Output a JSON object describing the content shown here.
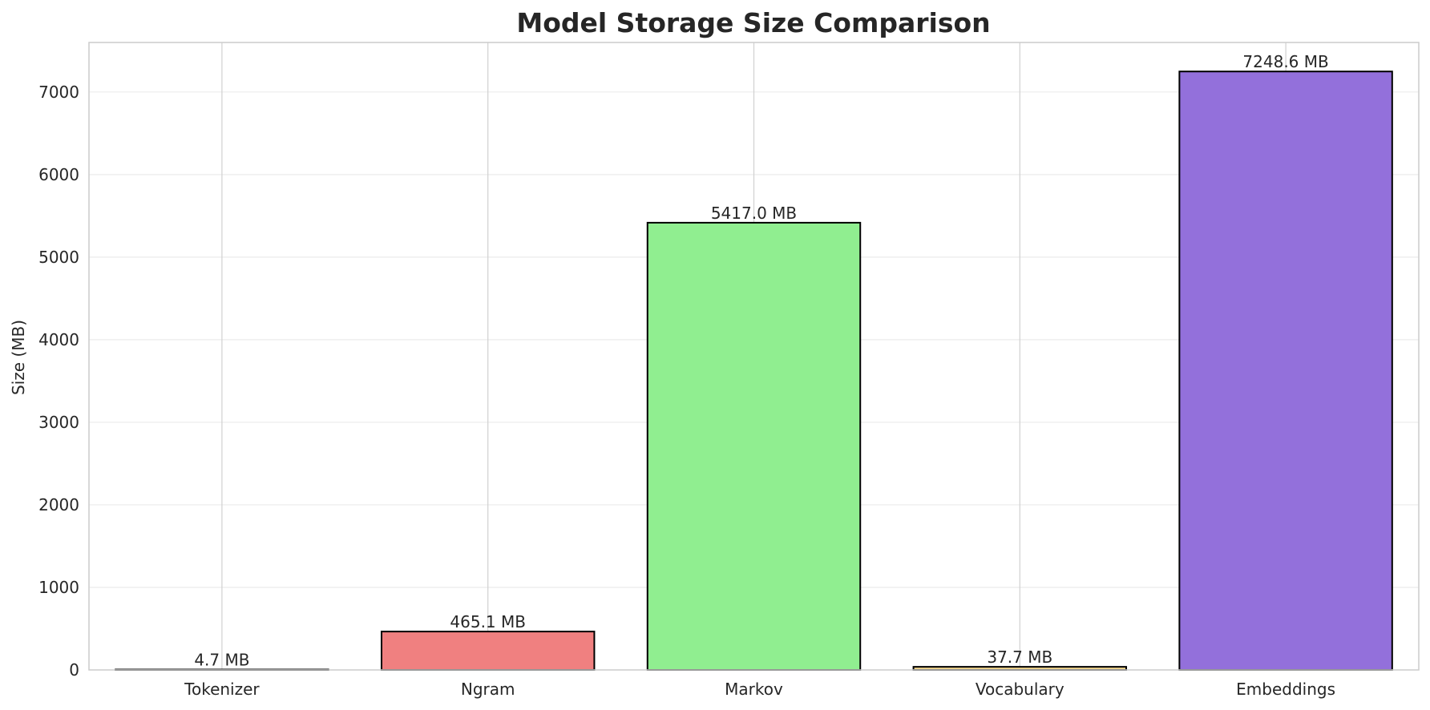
{
  "chart_data": {
    "type": "bar",
    "title": "Model Storage Size Comparison",
    "xlabel": "",
    "ylabel": "Size (MB)",
    "ylim": [
      0,
      7600
    ],
    "yticks": [
      0,
      1000,
      2000,
      3000,
      4000,
      5000,
      6000,
      7000
    ],
    "categories": [
      "Tokenizer",
      "Ngram",
      "Markov",
      "Vocabulary",
      "Embeddings"
    ],
    "values": [
      4.7,
      465.1,
      5417.0,
      37.7,
      7248.6
    ],
    "data_labels": [
      "4.7 MB",
      "465.1 MB",
      "5417.0 MB",
      "37.7 MB",
      "7248.6 MB"
    ],
    "colors": [
      "#87ceeb",
      "#f08080",
      "#90ee90",
      "#f0d58c",
      "#9370db"
    ],
    "grid": true,
    "legend": "none"
  }
}
